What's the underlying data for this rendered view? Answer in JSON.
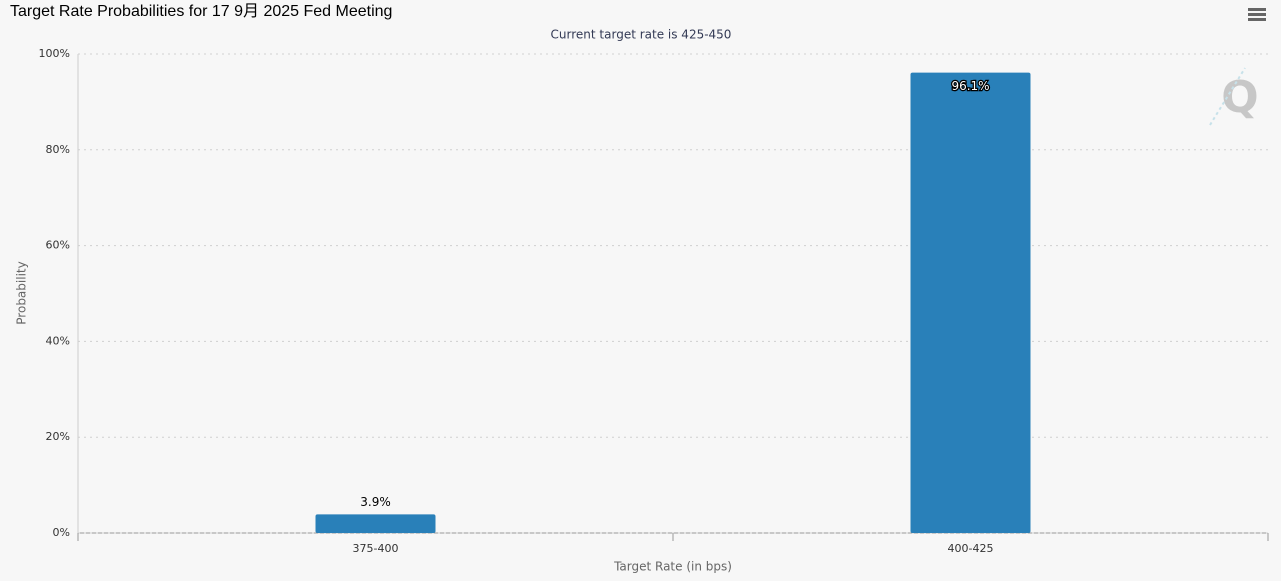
{
  "chart_data": {
    "type": "bar",
    "title": "Target Rate Probabilities for 17 9月 2025 Fed Meeting",
    "subtitle": "Current target rate is 425-450",
    "x_label": "Target Rate (in bps)",
    "y_label": "Probability",
    "categories": [
      "375-400",
      "400-425"
    ],
    "values": [
      3.9,
      96.1
    ],
    "value_labels": [
      "3.9%",
      "96.1%"
    ],
    "color": "#2980b9",
    "ylim": [
      0,
      100
    ],
    "yticks": [
      {
        "value": 0,
        "label": "0%"
      },
      {
        "value": 20,
        "label": "20%"
      },
      {
        "value": 40,
        "label": "40%"
      },
      {
        "value": 60,
        "label": "60%"
      },
      {
        "value": 80,
        "label": "80%"
      },
      {
        "value": 100,
        "label": "100%"
      }
    ],
    "grid": true
  }
}
